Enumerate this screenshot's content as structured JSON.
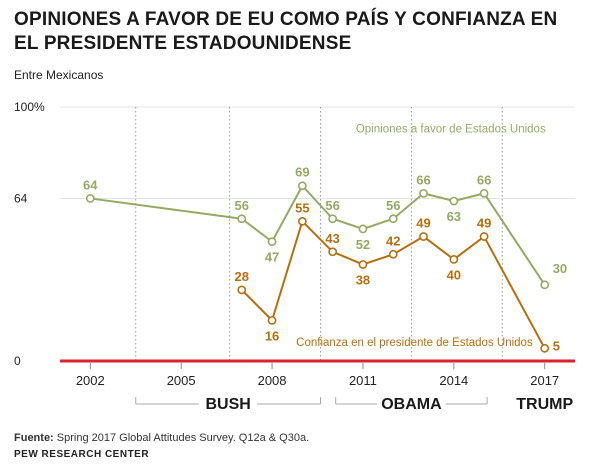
{
  "title": "OPINIONES A FAVOR DE EU COMO PAÍS Y CONFIANZA EN EL PRESIDENTE ESTADOUNIDENSE",
  "subtitle": "Entre Mexicanos",
  "colors": {
    "favorable": "#94aa63",
    "confidence": "#b56f0e",
    "baseline": "#d9242f",
    "grid": "#e3e3e3",
    "dotted": "#9a9a9a"
  },
  "chart_data": {
    "type": "line",
    "title": "Opiniones a favor de EU como país y confianza en el presidente estadounidense",
    "xlabel": "",
    "ylabel": "",
    "xlim": [
      2001,
      2018
    ],
    "ylim": [
      0,
      100
    ],
    "y_tick_labels": [
      {
        "value": 100,
        "label": "100%"
      },
      {
        "value": 64,
        "label": "64"
      },
      {
        "value": 0,
        "label": "0"
      }
    ],
    "x_ticks": [
      2002,
      2005,
      2008,
      2011,
      2014,
      2017
    ],
    "presidency_dividers": [
      2003.5,
      2006.6,
      2009.6,
      2012.6,
      2015.6
    ],
    "eras": [
      {
        "name": "BUSH",
        "from": 2003.5,
        "to": 2009.6
      },
      {
        "name": "OBAMA",
        "from": 2010.1,
        "to": 2015.1
      },
      {
        "name": "TRUMP",
        "from": 2017,
        "to": 2017
      }
    ],
    "series": [
      {
        "name": "Opiniones a favor de Estados Unidos",
        "color": "#94aa63",
        "label_value": 2013.9,
        "label_y": 90,
        "x": [
          2002,
          2007,
          2008,
          2009,
          2010,
          2011,
          2012,
          2013,
          2014,
          2015,
          2017
        ],
        "values": [
          64,
          56,
          47,
          69,
          56,
          52,
          56,
          66,
          63,
          66,
          30
        ]
      },
      {
        "name": "Confianza en el presidente de Estados Unidos",
        "color": "#b56f0e",
        "label_value": 2012.7,
        "label_y": 6,
        "x": [
          2007,
          2008,
          2009,
          2010,
          2011,
          2012,
          2013,
          2014,
          2015,
          2017
        ],
        "values": [
          28,
          16,
          55,
          43,
          38,
          42,
          49,
          40,
          49,
          5
        ]
      }
    ]
  },
  "footer": {
    "source_label": "Fuente:",
    "source_text": " Spring 2017 Global Attitudes Survey. Q12a & Q30a.",
    "org": "PEW RESEARCH CENTER"
  }
}
